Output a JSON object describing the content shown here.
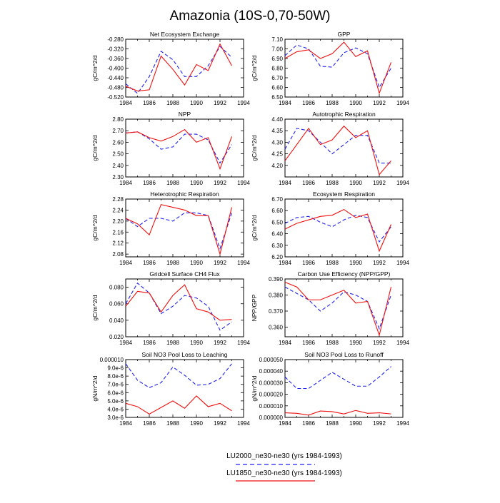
{
  "title": "Amazonia (10S-0,70-50W)",
  "legend": [
    {
      "label": "LU2000_ne30-ne30 (yrs 1984-1993)",
      "color": "#2222ee",
      "dash": true
    },
    {
      "label": "LU1850_ne30-ne30 (yrs 1984-1993)",
      "color": "#ee1111",
      "dash": false
    }
  ],
  "colors": {
    "LU2000": "#2222ee",
    "LU1850": "#ee1111",
    "axis": "#000000"
  },
  "chart_data": [
    {
      "type": "line",
      "title": "Net Ecosystem Exchange",
      "xlabel": "",
      "ylabel": "gC/m^2/d",
      "x": [
        1984,
        1985,
        1986,
        1987,
        1988,
        1989,
        1990,
        1991,
        1992,
        1993
      ],
      "xlim": [
        1984,
        1994
      ],
      "xticks": [
        "1984",
        "1986",
        "1988",
        "1990",
        "1992",
        "1994"
      ],
      "ylim": [
        -0.52,
        -0.28
      ],
      "yticks": [
        "-0.520",
        "-0.480",
        "-0.440",
        "-0.400",
        "-0.360",
        "-0.320",
        "-0.280"
      ],
      "series": [
        {
          "name": "LU2000_ne30-ne30 (yrs 1984-1993)",
          "values": [
            -0.465,
            -0.505,
            -0.435,
            -0.33,
            -0.365,
            -0.435,
            -0.435,
            -0.39,
            -0.31,
            -0.355
          ]
        },
        {
          "name": "LU1850_ne30-ne30 (yrs 1984-1993)",
          "values": [
            -0.475,
            -0.495,
            -0.49,
            -0.35,
            -0.405,
            -0.47,
            -0.385,
            -0.41,
            -0.3,
            -0.39
          ]
        }
      ]
    },
    {
      "type": "line",
      "title": "GPP",
      "xlabel": "",
      "ylabel": "gC/m^2/d",
      "x": [
        1984,
        1985,
        1986,
        1987,
        1988,
        1989,
        1990,
        1991,
        1992,
        1993
      ],
      "xlim": [
        1984,
        1994
      ],
      "xticks": [
        "1984",
        "1986",
        "1988",
        "1990",
        "1992",
        "1994"
      ],
      "ylim": [
        6.5,
        7.1
      ],
      "yticks": [
        "6.50",
        "6.60",
        "6.70",
        "6.80",
        "6.90",
        "7.00",
        "7.10"
      ],
      "series": [
        {
          "name": "LU2000_ne30-ne30 (yrs 1984-1993)",
          "values": [
            6.93,
            7.04,
            7.0,
            6.82,
            6.81,
            6.96,
            7.01,
            6.95,
            6.6,
            6.8
          ]
        },
        {
          "name": "LU1850_ne30-ne30 (yrs 1984-1993)",
          "values": [
            6.9,
            6.97,
            6.99,
            6.9,
            6.95,
            7.07,
            6.92,
            6.98,
            6.54,
            6.86
          ]
        }
      ]
    },
    {
      "type": "line",
      "title": "NPP",
      "xlabel": "",
      "ylabel": "gC/m^2/d",
      "x": [
        1984,
        1985,
        1986,
        1987,
        1988,
        1989,
        1990,
        1991,
        1992,
        1993
      ],
      "xlim": [
        1984,
        1994
      ],
      "xticks": [
        "1984",
        "1986",
        "1988",
        "1990",
        "1992",
        "1994"
      ],
      "ylim": [
        2.3,
        2.8
      ],
      "yticks": [
        "2.30",
        "2.40",
        "2.50",
        "2.60",
        "2.70",
        "2.80"
      ],
      "series": [
        {
          "name": "LU2000_ne30-ne30 (yrs 1984-1993)",
          "values": [
            2.68,
            2.69,
            2.63,
            2.54,
            2.56,
            2.67,
            2.67,
            2.62,
            2.42,
            2.58
          ]
        },
        {
          "name": "LU1850_ne30-ne30 (yrs 1984-1993)",
          "values": [
            2.68,
            2.69,
            2.64,
            2.61,
            2.65,
            2.71,
            2.6,
            2.64,
            2.37,
            2.65
          ]
        }
      ]
    },
    {
      "type": "line",
      "title": "Autotrophic Respiration",
      "xlabel": "",
      "ylabel": "gC/m^2/d",
      "x": [
        1984,
        1985,
        1986,
        1987,
        1988,
        1989,
        1990,
        1991,
        1992,
        1993
      ],
      "xlim": [
        1984,
        1994
      ],
      "xticks": [
        "1984",
        "1986",
        "1988",
        "1990",
        "1992",
        "1994"
      ],
      "ylim": [
        4.15,
        4.4
      ],
      "yticks": [
        "4.20",
        "4.25",
        "4.30",
        "4.35",
        "4.40"
      ],
      "series": [
        {
          "name": "LU2000_ne30-ne30 (yrs 1984-1993)",
          "values": [
            4.27,
            4.36,
            4.35,
            4.3,
            4.25,
            4.29,
            4.33,
            4.33,
            4.21,
            4.21
          ]
        },
        {
          "name": "LU1850_ne30-ne30 (yrs 1984-1993)",
          "values": [
            4.22,
            4.29,
            4.36,
            4.29,
            4.31,
            4.37,
            4.32,
            4.35,
            4.16,
            4.22
          ]
        }
      ]
    },
    {
      "type": "line",
      "title": "Heterotrophic Respiration",
      "xlabel": "",
      "ylabel": "gC/m^2/d",
      "x": [
        1984,
        1985,
        1986,
        1987,
        1988,
        1989,
        1990,
        1991,
        1992,
        1993
      ],
      "xlim": [
        1984,
        1994
      ],
      "xticks": [
        "1984",
        "1986",
        "1988",
        "1990",
        "1992",
        "1994"
      ],
      "ylim": [
        2.07,
        2.28
      ],
      "yticks": [
        "2.08",
        "2.12",
        "2.16",
        "2.20",
        "2.24",
        "2.28"
      ],
      "series": [
        {
          "name": "LU2000_ne30-ne30 (yrs 1984-1993)",
          "values": [
            2.21,
            2.18,
            2.21,
            2.21,
            2.2,
            2.23,
            2.23,
            2.22,
            2.1,
            2.23
          ]
        },
        {
          "name": "LU1850_ne30-ne30 (yrs 1984-1993)",
          "values": [
            2.21,
            2.19,
            2.15,
            2.26,
            2.25,
            2.24,
            2.22,
            2.22,
            2.08,
            2.25
          ]
        }
      ]
    },
    {
      "type": "line",
      "title": "Ecosystem Respiration",
      "xlabel": "",
      "ylabel": "gC/m^2/d",
      "x": [
        1984,
        1985,
        1986,
        1987,
        1988,
        1989,
        1990,
        1991,
        1992,
        1993
      ],
      "xlim": [
        1984,
        1994
      ],
      "xticks": [
        "1984",
        "1986",
        "1988",
        "1990",
        "1992",
        "1994"
      ],
      "ylim": [
        6.2,
        6.7
      ],
      "yticks": [
        "6.20",
        "6.30",
        "6.40",
        "6.50",
        "6.60",
        "6.70"
      ],
      "series": [
        {
          "name": "LU2000_ne30-ne30 (yrs 1984-1993)",
          "values": [
            6.49,
            6.54,
            6.55,
            6.5,
            6.46,
            6.52,
            6.56,
            6.54,
            6.33,
            6.46
          ]
        },
        {
          "name": "LU1850_ne30-ne30 (yrs 1984-1993)",
          "values": [
            6.44,
            6.49,
            6.52,
            6.55,
            6.56,
            6.61,
            6.54,
            6.57,
            6.25,
            6.48
          ]
        }
      ]
    },
    {
      "type": "line",
      "title": "Gridcell Surface CH4 Flux",
      "xlabel": "",
      "ylabel": "gC/m^2/d",
      "x": [
        1984,
        1985,
        1986,
        1987,
        1988,
        1989,
        1990,
        1991,
        1992,
        1993
      ],
      "xlim": [
        1984,
        1994
      ],
      "xticks": [
        "1984",
        "1986",
        "1988",
        "1990",
        "1992",
        "1994"
      ],
      "ylim": [
        0.02,
        0.09
      ],
      "yticks": [
        "0.020",
        "0.040",
        "0.060",
        "0.080"
      ],
      "series": [
        {
          "name": "LU2000_ne30-ne30 (yrs 1984-1993)",
          "values": [
            0.06,
            0.085,
            0.073,
            0.048,
            0.057,
            0.07,
            0.067,
            0.057,
            0.028,
            0.038
          ]
        },
        {
          "name": "LU1850_ne30-ne30 (yrs 1984-1993)",
          "values": [
            0.057,
            0.075,
            0.073,
            0.05,
            0.07,
            0.083,
            0.054,
            0.05,
            0.04,
            0.041
          ]
        }
      ]
    },
    {
      "type": "line",
      "title": "Carbon Use Efficiency (NPP/GPP)",
      "xlabel": "",
      "ylabel": "NPP/GPP",
      "x": [
        1984,
        1985,
        1986,
        1987,
        1988,
        1989,
        1990,
        1991,
        1992,
        1993
      ],
      "xlim": [
        1984,
        1994
      ],
      "xticks": [
        "1984",
        "1986",
        "1988",
        "1990",
        "1992",
        "1994"
      ],
      "ylim": [
        0.354,
        0.39
      ],
      "yticks": [
        "0.360",
        "0.370",
        "0.380",
        "0.390"
      ],
      "series": [
        {
          "name": "LU2000_ne30-ne30 (yrs 1984-1993)",
          "values": [
            0.385,
            0.381,
            0.377,
            0.37,
            0.375,
            0.382,
            0.38,
            0.376,
            0.359,
            0.38
          ]
        },
        {
          "name": "LU1850_ne30-ne30 (yrs 1984-1993)",
          "values": [
            0.388,
            0.385,
            0.377,
            0.377,
            0.38,
            0.383,
            0.375,
            0.376,
            0.355,
            0.385
          ]
        }
      ]
    },
    {
      "type": "line",
      "title": "Soil NO3 Pool Loss to Leaching",
      "xlabel": "",
      "ylabel": "gN/m^2/d",
      "x": [
        1984,
        1985,
        1986,
        1987,
        1988,
        1989,
        1990,
        1991,
        1992,
        1993
      ],
      "xlim": [
        1984,
        1994
      ],
      "xticks": [
        "1984",
        "1986",
        "1988",
        "1990",
        "1992",
        "1994"
      ],
      "ylim": [
        3e-06,
        1e-05
      ],
      "yticks": [
        "3.0e-6",
        "4.0e-6",
        "5.0e-6",
        "6.0e-6",
        "7.0e-6",
        "8.0e-6",
        "9.0e-6",
        "0.000010"
      ],
      "series": [
        {
          "name": "LU2000_ne30-ne30 (yrs 1984-1993)",
          "values": [
            9.5e-06,
            7.5e-06,
            6.6e-06,
            7.2e-06,
            9.1e-06,
            8.1e-06,
            6.9e-06,
            7e-06,
            7.7e-06,
            9.5e-06
          ]
        },
        {
          "name": "LU1850_ne30-ne30 (yrs 1984-1993)",
          "values": [
            4.7e-06,
            4.3e-06,
            3.4e-06,
            4.2e-06,
            5e-06,
            4.1e-06,
            5.6e-06,
            4.3e-06,
            4.7e-06,
            3.8e-06
          ]
        }
      ]
    },
    {
      "type": "line",
      "title": "Soil NO3 Pool Loss to Runoff",
      "xlabel": "",
      "ylabel": "gN/m^2/d",
      "x": [
        1984,
        1985,
        1986,
        1987,
        1988,
        1989,
        1990,
        1991,
        1992,
        1993
      ],
      "xlim": [
        1984,
        1994
      ],
      "xticks": [
        "1984",
        "1986",
        "1988",
        "1990",
        "1992",
        "1994"
      ],
      "ylim": [
        0,
        5e-05
      ],
      "yticks": [
        "0.000000",
        "0.000010",
        "0.000020",
        "0.000030",
        "0.000040",
        "0.000050"
      ],
      "series": [
        {
          "name": "LU2000_ne30-ne30 (yrs 1984-1993)",
          "values": [
            3.5e-05,
            2.5e-05,
            2.5e-05,
            3.2e-05,
            3.9e-05,
            3.3e-05,
            2.7e-05,
            2.7e-05,
            3.5e-05,
            4.4e-05
          ]
        },
        {
          "name": "LU1850_ne30-ne30 (yrs 1984-1993)",
          "values": [
            4e-06,
            3.5e-06,
            2e-06,
            5.5e-06,
            5e-06,
            3e-06,
            6e-06,
            3.5e-06,
            4e-06,
            3e-06
          ]
        }
      ]
    }
  ]
}
